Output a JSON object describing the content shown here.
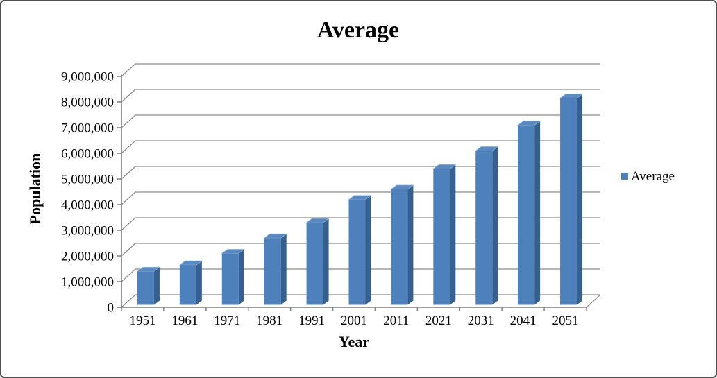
{
  "frame": {
    "background": "#FFFFFF",
    "border_color": "#4F4F4F"
  },
  "chart_data": {
    "type": "bar",
    "style": "3d-column",
    "title": "Average",
    "xlabel": "Year",
    "ylabel": "Population",
    "categories": [
      "1951",
      "1961",
      "1971",
      "1981",
      "1991",
      "2001",
      "2011",
      "2021",
      "2031",
      "2041",
      "2051"
    ],
    "series": [
      {
        "name": "Average",
        "values": [
          1300000,
          1550000,
          2000000,
          2600000,
          3200000,
          4100000,
          4500000,
          5300000,
          6000000,
          7000000,
          8050000
        ]
      }
    ],
    "ylim": [
      0,
      9000000
    ],
    "ytick_interval": 1000000,
    "ytick_labels": [
      "0",
      "1,000,000",
      "2,000,000",
      "3,000,000",
      "4,000,000",
      "5,000,000",
      "6,000,000",
      "7,000,000",
      "8,000,000",
      "9,000,000"
    ],
    "grid": true,
    "legend_position": "right-middle",
    "legend": [
      {
        "label": "Average",
        "swatch_color": "#4E81BC"
      }
    ],
    "colors": {
      "bar_front": "#4E81BC",
      "bar_side": "#36608F",
      "bar_top": "#5B89C0",
      "bar_top_highlight": "#8FAFD4",
      "gridline": "#8A8A8A",
      "axis": "#7F7F7F",
      "text": "#000000"
    }
  }
}
